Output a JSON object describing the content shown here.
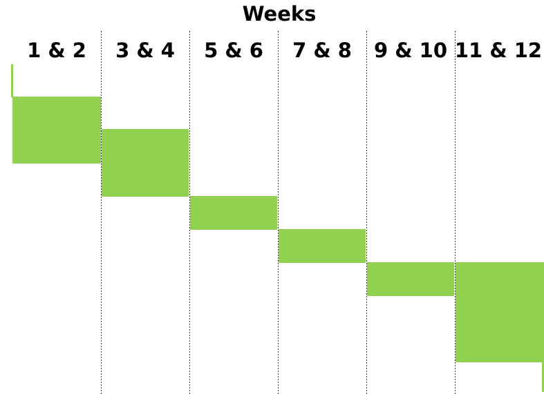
{
  "header": {
    "title": "Weeks"
  },
  "columns": [
    "1 & 2",
    "3 & 4",
    "5 & 6",
    "7 & 8",
    "9 & 10",
    "11 & 12"
  ]
}
